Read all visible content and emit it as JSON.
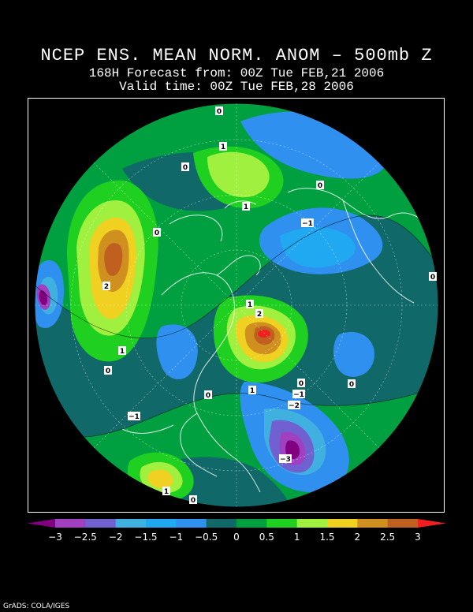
{
  "title": {
    "line1": "NCEP ENS. MEAN NORM. ANOM – 500mb Z",
    "line2": "168H Forecast from: 00Z Tue FEB,21 2006",
    "line3": "Valid time: 00Z Tue FEB,28 2006"
  },
  "colorbar": {
    "labels": [
      "−3",
      "−2.5",
      "−2",
      "−1.5",
      "−1",
      "−0.5",
      "0",
      "0.5",
      "1",
      "1.5",
      "2",
      "2.5",
      "3"
    ],
    "colors": [
      "#800080",
      "#a040c0",
      "#7060d0",
      "#40b0e0",
      "#20a8f0",
      "#3090f0",
      "#106868",
      "#00a040",
      "#20d020",
      "#a0f040",
      "#f0d020",
      "#d09020",
      "#c06020",
      "#f02020"
    ]
  },
  "map": {
    "contour_labels": [
      {
        "text": "0"
      },
      {
        "text": "1"
      },
      {
        "text": "0"
      },
      {
        "text": "0"
      },
      {
        "text": "0"
      },
      {
        "text": "1"
      },
      {
        "text": "−1"
      },
      {
        "text": "0"
      },
      {
        "text": "2"
      },
      {
        "text": "1"
      },
      {
        "text": "0"
      },
      {
        "text": "1"
      },
      {
        "text": "2"
      },
      {
        "text": "0"
      },
      {
        "text": "0"
      },
      {
        "text": "1"
      },
      {
        "text": "−1"
      },
      {
        "text": "−2"
      },
      {
        "text": "−1"
      },
      {
        "text": "−3"
      },
      {
        "text": "1"
      },
      {
        "text": "0"
      },
      {
        "text": "0"
      }
    ]
  },
  "footer": "GrADS: COLA/IGES"
}
